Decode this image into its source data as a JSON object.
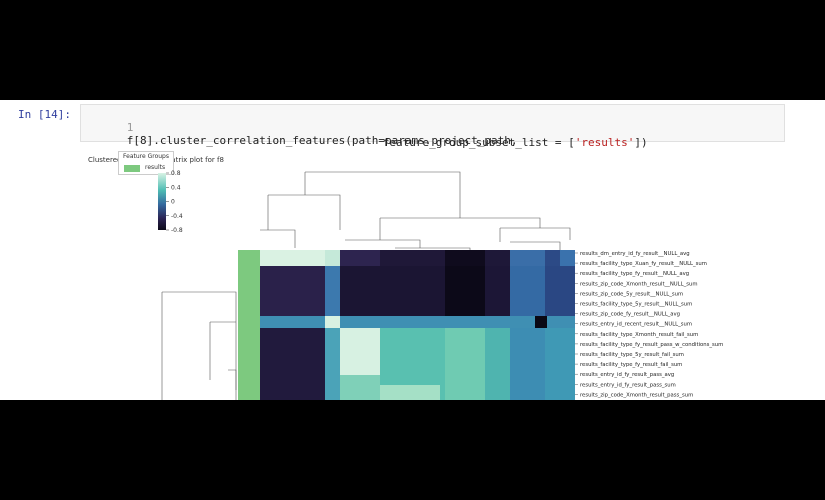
{
  "cell": {
    "prompt": "In [14]:",
    "line_number": "1",
    "code_line1": "f[8].cluster_correlation_features(path=params.project_path,",
    "code_line2_pre": "feature_group_subset_list = [",
    "code_line2_str": "'results'",
    "code_line2_post": "])"
  },
  "output": {
    "title": "Clustered Correlation matrix plot for f8",
    "legend": {
      "title": "Feature Groups",
      "label": "results",
      "color": "#7dc97f"
    },
    "colorbar_ticks": [
      "0.8",
      "0.4",
      "0.0",
      "-0.4",
      "-0.8"
    ],
    "row_labels": [
      "results_dm_entry_id_fy_result__NULL_avg",
      "results_facility_type_Xuan_fy_result__NULL_sum",
      "results_facility_type_fy_result__NULL_avg",
      "results_zip_code_Xmonth_result__NULL_sum",
      "results_zip_code_5y_result__NULL_sum",
      "results_facility_type_5y_result__NULL_sum",
      "results_zip_code_fy_result__NULL_avg",
      "results_entry_id_recent_result__NULL_sum",
      "results_facility_type_Xmonth_result_fail_sum",
      "results_facility_type_fy_result_pass_w_conditions_sum",
      "results_facility_type_5y_result_fail_sum",
      "results_facility_type_fy_result_fail_sum",
      "results_entry_id_fy_result_pass_avg",
      "results_entry_id_fy_result_pass_sum",
      "results_zip_code_Xmonth_result_pass_sum"
    ]
  },
  "chart_data": {
    "type": "heatmap",
    "title": "Clustered Correlation matrix plot for f8",
    "colorbar_ticks": [
      0.8,
      0.4,
      0.0,
      -0.4,
      -0.8
    ],
    "colorbar_range": [
      -0.8,
      0.8
    ],
    "legend": [
      "results"
    ],
    "rows": [
      "results_dm_entry_id_fy_result__NULL_avg",
      "results_facility_type_Xuan_fy_result__NULL_sum",
      "results_facility_type_fy_result__NULL_avg",
      "results_zip_code_Xmonth_result__NULL_sum",
      "results_zip_code_5y_result__NULL_sum",
      "results_facility_type_5y_result__NULL_sum",
      "results_zip_code_fy_result__NULL_avg",
      "results_entry_id_recent_result__NULL_sum",
      "results_facility_type_Xmonth_result_fail_sum",
      "results_facility_type_fy_result_pass_w_conditions_sum",
      "results_facility_type_5y_result_fail_sum",
      "results_facility_type_fy_result_fail_sum",
      "results_entry_id_fy_result_pass_avg",
      "results_entry_id_fy_result_pass_sum",
      "results_zip_code_Xmonth_result_pass_sum"
    ]
  }
}
